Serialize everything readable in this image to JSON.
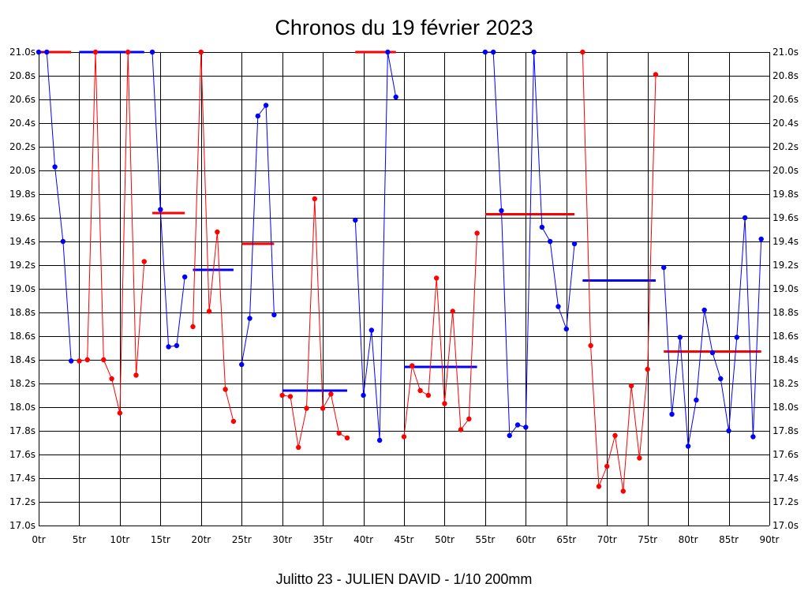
{
  "chart_data": {
    "type": "line",
    "title": "Chronos du 19 février 2023",
    "subtitle": "Julitto 23 - JULIEN DAVID - 1/10 200mm",
    "xlim": [
      0,
      90
    ],
    "ylim": [
      17.0,
      21.0
    ],
    "x_ticks": [
      "0tr",
      "5tr",
      "10tr",
      "15tr",
      "20tr",
      "25tr",
      "30tr",
      "35tr",
      "40tr",
      "45tr",
      "50tr",
      "55tr",
      "60tr",
      "65tr",
      "70tr",
      "75tr",
      "80tr",
      "85tr",
      "90tr"
    ],
    "y_ticks": [
      "17.0s",
      "17.2s",
      "17.4s",
      "17.6s",
      "17.8s",
      "18.0s",
      "18.2s",
      "18.4s",
      "18.6s",
      "18.8s",
      "19.0s",
      "19.2s",
      "19.4s",
      "19.6s",
      "19.8s",
      "20.0s",
      "20.2s",
      "20.4s",
      "20.6s",
      "20.8s",
      "21.0s"
    ],
    "grid": true,
    "colors": {
      "blue": "#0000ff",
      "red": "#ff0000"
    },
    "series": [
      {
        "color": "blue",
        "x": [
          0,
          1,
          2,
          3,
          4
        ],
        "y": [
          21.0,
          21.0,
          20.03,
          19.4,
          18.39
        ]
      },
      {
        "color": "red",
        "x": [
          5,
          6,
          7,
          8,
          9,
          10,
          11,
          12,
          13
        ],
        "y": [
          18.39,
          18.4,
          21.0,
          18.4,
          18.24,
          17.95,
          21.0,
          18.27,
          19.23
        ]
      },
      {
        "color": "blue",
        "x": [
          14,
          15,
          16,
          17,
          18
        ],
        "y": [
          21.0,
          19.67,
          18.51,
          18.52,
          19.1
        ]
      },
      {
        "color": "red",
        "x": [
          19,
          20,
          21,
          22,
          23,
          24
        ],
        "y": [
          18.68,
          21.0,
          18.81,
          19.48,
          18.15,
          17.88
        ]
      },
      {
        "color": "blue",
        "x": [
          25,
          26,
          27,
          28,
          29
        ],
        "y": [
          18.36,
          18.75,
          20.46,
          20.55,
          18.78
        ]
      },
      {
        "color": "red",
        "x": [
          30,
          31,
          32,
          33,
          34,
          35,
          36,
          37,
          38
        ],
        "y": [
          18.1,
          18.09,
          17.66,
          17.99,
          19.76,
          17.99,
          18.11,
          17.78,
          17.74
        ]
      },
      {
        "color": "blue",
        "x": [
          39,
          40,
          41,
          42,
          43,
          44
        ],
        "y": [
          19.58,
          18.1,
          18.65,
          17.72,
          21.0,
          20.62
        ]
      },
      {
        "color": "red",
        "x": [
          45,
          46,
          47,
          48,
          49,
          50,
          51,
          52,
          53,
          54
        ],
        "y": [
          17.75,
          18.35,
          18.14,
          18.1,
          19.09,
          18.03,
          18.81,
          17.81,
          17.9,
          19.47
        ]
      },
      {
        "color": "blue",
        "x": [
          55,
          56,
          57,
          58,
          59,
          60,
          61,
          62,
          63,
          64,
          65,
          66
        ],
        "y": [
          21.0,
          21.0,
          19.66,
          17.76,
          17.85,
          17.83,
          21.0,
          19.52,
          19.4,
          18.85,
          18.66,
          19.38
        ]
      },
      {
        "color": "red",
        "x": [
          67,
          68,
          69,
          70,
          71,
          72,
          73,
          74,
          75,
          76
        ],
        "y": [
          21.0,
          18.52,
          17.33,
          17.5,
          17.76,
          17.29,
          18.18,
          17.57,
          18.32,
          20.81
        ]
      },
      {
        "color": "blue",
        "x": [
          77,
          78,
          79,
          80,
          81,
          82,
          83,
          84,
          85,
          86,
          87,
          88,
          89
        ],
        "y": [
          19.18,
          17.94,
          18.59,
          17.67,
          18.06,
          18.82,
          18.46,
          18.24,
          17.8,
          18.59,
          19.6,
          17.75,
          19.42
        ]
      }
    ],
    "averages": [
      {
        "color": "red",
        "x": [
          0,
          4
        ],
        "y": 21.0
      },
      {
        "color": "blue",
        "x": [
          5,
          13
        ],
        "y": 21.0
      },
      {
        "color": "red",
        "x": [
          14,
          18
        ],
        "y": 19.64
      },
      {
        "color": "blue",
        "x": [
          19,
          24
        ],
        "y": 19.16
      },
      {
        "color": "red",
        "x": [
          25,
          29
        ],
        "y": 19.38
      },
      {
        "color": "blue",
        "x": [
          30,
          38
        ],
        "y": 18.14
      },
      {
        "color": "red",
        "x": [
          39,
          44
        ],
        "y": 21.0
      },
      {
        "color": "blue",
        "x": [
          45,
          54
        ],
        "y": 18.34
      },
      {
        "color": "red",
        "x": [
          55,
          66
        ],
        "y": 19.63
      },
      {
        "color": "blue",
        "x": [
          67,
          76
        ],
        "y": 19.07
      },
      {
        "color": "red",
        "x": [
          77,
          89
        ],
        "y": 18.47
      }
    ]
  }
}
